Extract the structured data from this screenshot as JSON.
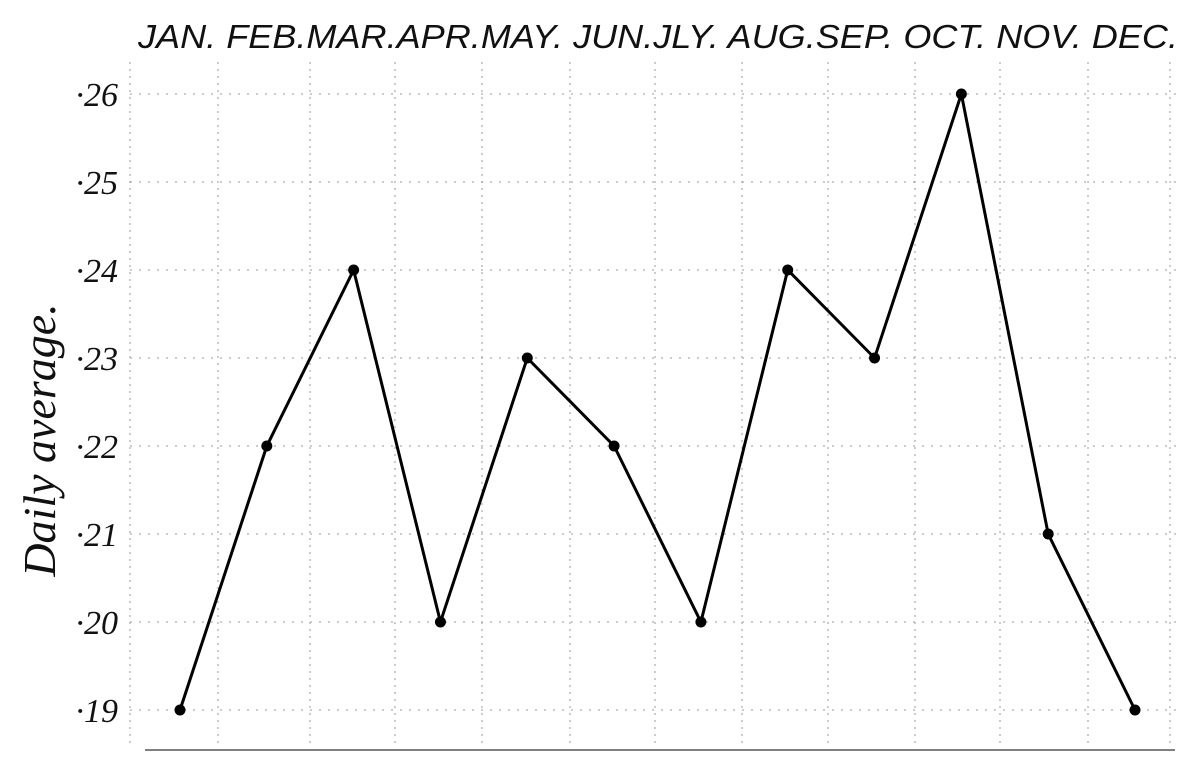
{
  "chart_data": {
    "type": "line",
    "title": "",
    "xlabel": "",
    "ylabel": "Daily average.",
    "categories": [
      "JAN.",
      "FEB.",
      "MAR.",
      "APR.",
      "MAY.",
      "JUN.",
      "JLY.",
      "AUG.",
      "SEP.",
      "OCT.",
      "NOV.",
      "DEC."
    ],
    "category_label_text": "JAN. FEB.MAR.APR.MAY. JUN.JLY. AUG.SEP. OCT. NOV. DEC.",
    "x_axis_position": "top",
    "y_tick_labels": [
      "·19",
      "·20",
      "·21",
      "·22",
      "·23",
      "·24",
      "·25",
      "·26"
    ],
    "y_ticks": [
      0.19,
      0.2,
      0.21,
      0.22,
      0.23,
      0.24,
      0.25,
      0.26
    ],
    "ylim": [
      0.19,
      0.26
    ],
    "grid": true,
    "legend": "none",
    "series": [
      {
        "values": [
          0.19,
          0.22,
          0.24,
          0.2,
          0.23,
          0.22,
          0.2,
          0.24,
          0.23,
          0.26,
          0.21,
          0.19
        ]
      }
    ],
    "colors": {
      "line": "#000000",
      "grid": "#9a9a9a",
      "text": "#111111"
    }
  }
}
